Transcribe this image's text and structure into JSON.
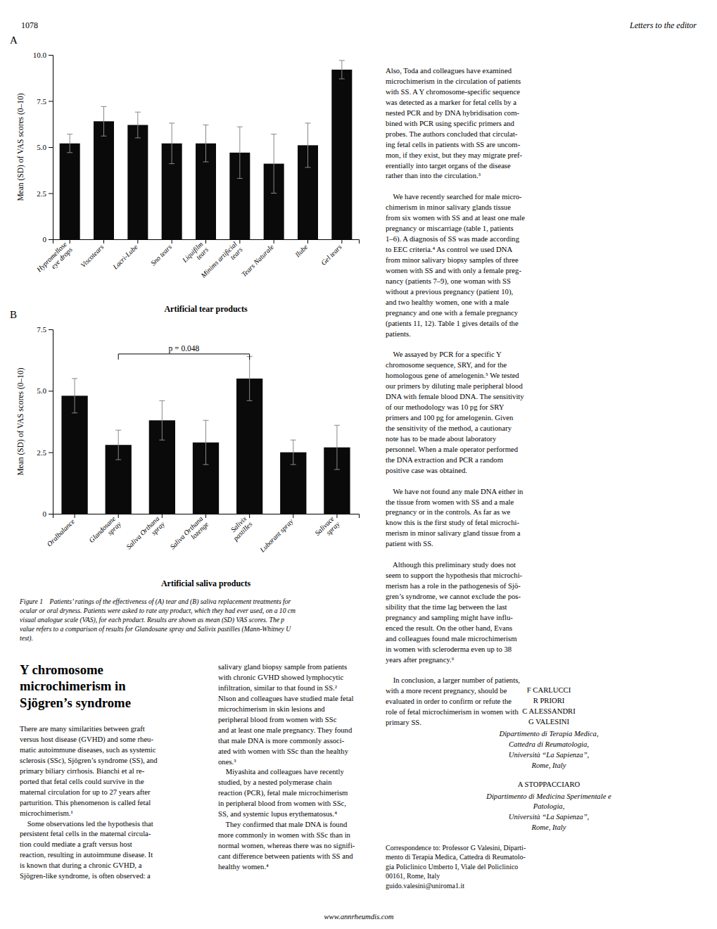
{
  "chart_data": [
    {
      "type": "bar",
      "title": "A",
      "categories": [
        "Hypromellose\neye drops",
        "Viscotears",
        "Lacri-Lube",
        "Sno tears",
        "Liquifilm\ntears",
        "Minims artificial\ntears",
        "Tears Naturale",
        "Ilube",
        "Gel tears"
      ],
      "values": [
        5.2,
        6.4,
        6.2,
        5.2,
        5.2,
        4.7,
        4.1,
        5.1,
        9.2
      ],
      "errors": [
        0.5,
        0.8,
        0.7,
        1.1,
        1.0,
        1.4,
        1.6,
        1.2,
        0.5
      ],
      "color": "#0a0a0a",
      "ylim": [
        0,
        10.0
      ],
      "yticks": [
        0,
        2.5,
        {
          "value": 5.0,
          "label": "5.0"
        },
        7.5,
        {
          "value": 10.0,
          "label": "10.0"
        }
      ],
      "ylabel": "Mean (SD) of VAS scores (0–10)",
      "xlabel": "Artificial tear products",
      "grid": false
    },
    {
      "type": "bar",
      "title": "B",
      "categories": [
        "Oralbalance",
        "Glandosane\nspray",
        "Saliva Orthana\nspray",
        "Saliva Orthana\nlozenge",
        "Salivix\npastilles",
        "Luborant spray",
        "Salivace\nspray"
      ],
      "values": [
        4.8,
        2.8,
        3.8,
        2.9,
        5.5,
        2.5,
        2.7
      ],
      "errors": [
        0.7,
        0.6,
        0.8,
        0.9,
        0.9,
        0.5,
        0.9
      ],
      "color": "#0a0a0a",
      "ylim": [
        0,
        7.5
      ],
      "yticks": [
        0,
        2.5,
        {
          "value": 5.0,
          "label": "5.0"
        },
        7.5
      ],
      "ylabel": "Mean (SD) of VAS scores (0–10)",
      "xlabel": "Artificial saliva products",
      "grid": false,
      "annotations": [
        {
          "text": "p = 0.048",
          "x_from": 1,
          "x_to": 4,
          "y": 6.5
        }
      ]
    }
  ],
  "page_number": "1078",
  "journal": "Letters to the editor",
  "website": "www.annrheumdis.com",
  "figure_caption": "Figure 1    Patients’ ratings of the effectiveness of (A) tear and (B) saliva replacement treatments for\nocular or oral dryness. Patients were asked to rate any product, which they had ever used, on a 10 cm\nvisual analogue scale (VAS), for each product. Results are shown as mean (SD) VAS scores. The p\nvalue refers to a comparison of results for Glandosane spray and Salivix pastilles (Mann-Whitney U\ntest).",
  "title": "Y chromosome\nmicrochimerism in\nSjögren’s syndrome",
  "left_body_col1": "There are many similarities between graft\nversus host disease (GVHD) and some rheu-\nmatic autoimmune diseases, such as systemic\nsclerosis (SSc), Sjögren’s syndrome (SS), and\nprimary biliary cirrhosis. Bianchi et al re-\nported that fetal cells could survive in the\nmaternal circulation for up to 27 years after\nparturition. This phenomenon is called fetal\nmicrochimerism.¹\n    Some observations led the hypothesis that\npersistent fetal cells in the maternal circula-\ntion could mediate a graft versus host\nreaction, resulting in autoimmune disease. It\nis known that during a chronic GVHD, a\nSjögren-like syndrome, is often observed: a",
  "left_body_col2": "salivary gland biopsy sample from patients\nwith chronic GVHD showed lymphocytic\ninfiltration, similar to that found in SS.²\nNlson and colleagues have studied male fetal\nmicrochimerism in skin lesions and\nperipheral blood from women with SSc\nand at least one male pregnancy. They found\nthat male DNA is more commonly associ-\nated with women with SSc than the healthy\nones.³\n    Miyashita and colleagues have recently\nstudied, by a nested polymerase chain\nreaction (PCR), fetal male microchimerism\nin peripheral blood from women with SSc,\nSS, and systemic lupus erythematosus.⁴\n    They confirmed that male DNA is found\nmore commonly in women with SSc than in\nnormal women, whereas there was no signifi-\ncant difference between patients with SS and\nhealthy women.⁴",
  "right_col_text": "Also, Toda and colleagues have examined\nmicrochimerism in the circulation of patients\nwith SS. A Y chromosome-specific sequence\nwas detected as a marker for fetal cells by a\nnested PCR and by DNA hybridisation com-\nbined with PCR using specific primers and\nprobes. The authors concluded that circulat-\ning fetal cells in patients with SS are uncom-\nmon, if they exist, but they may migrate pref-\nerentially into target organs of the disease\nrather than into the circulation.³\n\n    We have recently searched for male micro-\nchimerism in minor salivary glands tissue\nfrom six women with SS and at least one male\npregnancy or miscarriage (table 1, patients\n1–6). A diagnosis of SS was made according\nto EEC criteria.⁴ As control we used DNA\nfrom minor salivary biopsy samples of three\nwomen with SS and with only a female preg-\nnancy (patients 7–9), one woman with SS\nwithout a previous pregnancy (patient 10),\nand two healthy women, one with a male\npregnancy and one with a female pregnancy\n(patients 11, 12). Table 1 gives details of the\npatients.\n\n    We assayed by PCR for a specific Y\nchromosome sequence, SRY, and for the\nhomologous gene of amelogenin.⁵ We tested\nour primers by diluting male peripheral blood\nDNA with female blood DNA. The sensitivity\nof our methodology was 10 pg for SRY\nprimers and 100 pg for amelogenin. Given\nthe sensitivity of the method, a cautionary\nnote has to be made about laboratory\npersonnel. When a male operator performed\nthe DNA extraction and PCR a random\npositive case was obtained.\n\n    We have not found any male DNA either in\nthe tissue from women with SS and a male\npregnancy or in the controls. As far as we\nknow this is the first study of fetal microchi-\nmerism in minor salivary gland tissue from a\npatient with SS.\n\n    Although this preliminary study does not\nseem to support the hypothesis that microchi-\nmerism has a role in the pathogenesis of Sjö-\ngren’s syndrome, we cannot exclude the pos-\nsibility that the time lag between the last\npregnancy and sampling might have influ-\nenced the result. On the other hand, Evans\nand colleagues found male microchimerism\nin women with scleroderma even up to 38\nyears after pregnancy.⁶\n\n    In conclusion, a larger number of patients,\nwith a more recent pregnancy, should be\nevaluated in order to confirm or refute the\nrole of fetal microchimerism in women with\nprimary SS.",
  "authors_block1": "F CARLUCCI\nR PRIORI\nC ALESSANDRI\nG VALESINI",
  "authors_block1_italic": "Dipartimento di Terapia Medica,\nCattedra di Reumatologia,\nUniversità “La Sapienza”,\nRome, Italy",
  "authors_block2": "A STOPPACCIARO",
  "authors_block2_italic": "Dipartimento di Medicina Sperimentale e\nPatologia,\nUniversità “La Sapienza”,\nRome, Italy",
  "correspondence": "Correspondence to: Professor G Valesini, Diparti-\nmento di Terapia Medica, Cattedra di Reumatolo-\ngia Policlinico Umberto I, Viale del Policlinico\n00161, Rome, Italy\nguido.valesini@uniroma1.it"
}
